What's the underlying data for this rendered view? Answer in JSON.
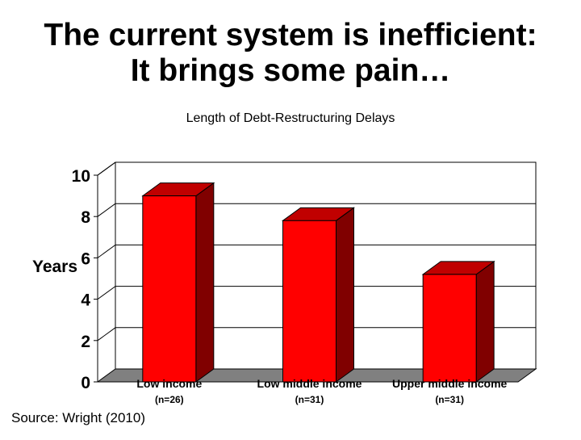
{
  "slide": {
    "title_line1": "The current system is inefficient:",
    "title_line2": "It brings some pain…",
    "source": "Source: Wright (2010)"
  },
  "chart_data": {
    "type": "bar",
    "title": "Length of Debt-Restructuring Delays",
    "ylabel": "Years",
    "xlabel": "",
    "categories": [
      "Low income",
      "Low middle income",
      "Upper middle income"
    ],
    "category_notes": [
      "(n=26)",
      "(n=31)",
      "(n=31)"
    ],
    "values": [
      9,
      7.8,
      5.2
    ],
    "ylim": [
      0,
      10
    ],
    "yticks": [
      0,
      2,
      4,
      6,
      8,
      10
    ],
    "grid": true,
    "legend": "none",
    "colors": {
      "bar_front": "#ff0000",
      "bar_side": "#800000",
      "bar_top": "#c00000",
      "floor": "#808080"
    }
  }
}
